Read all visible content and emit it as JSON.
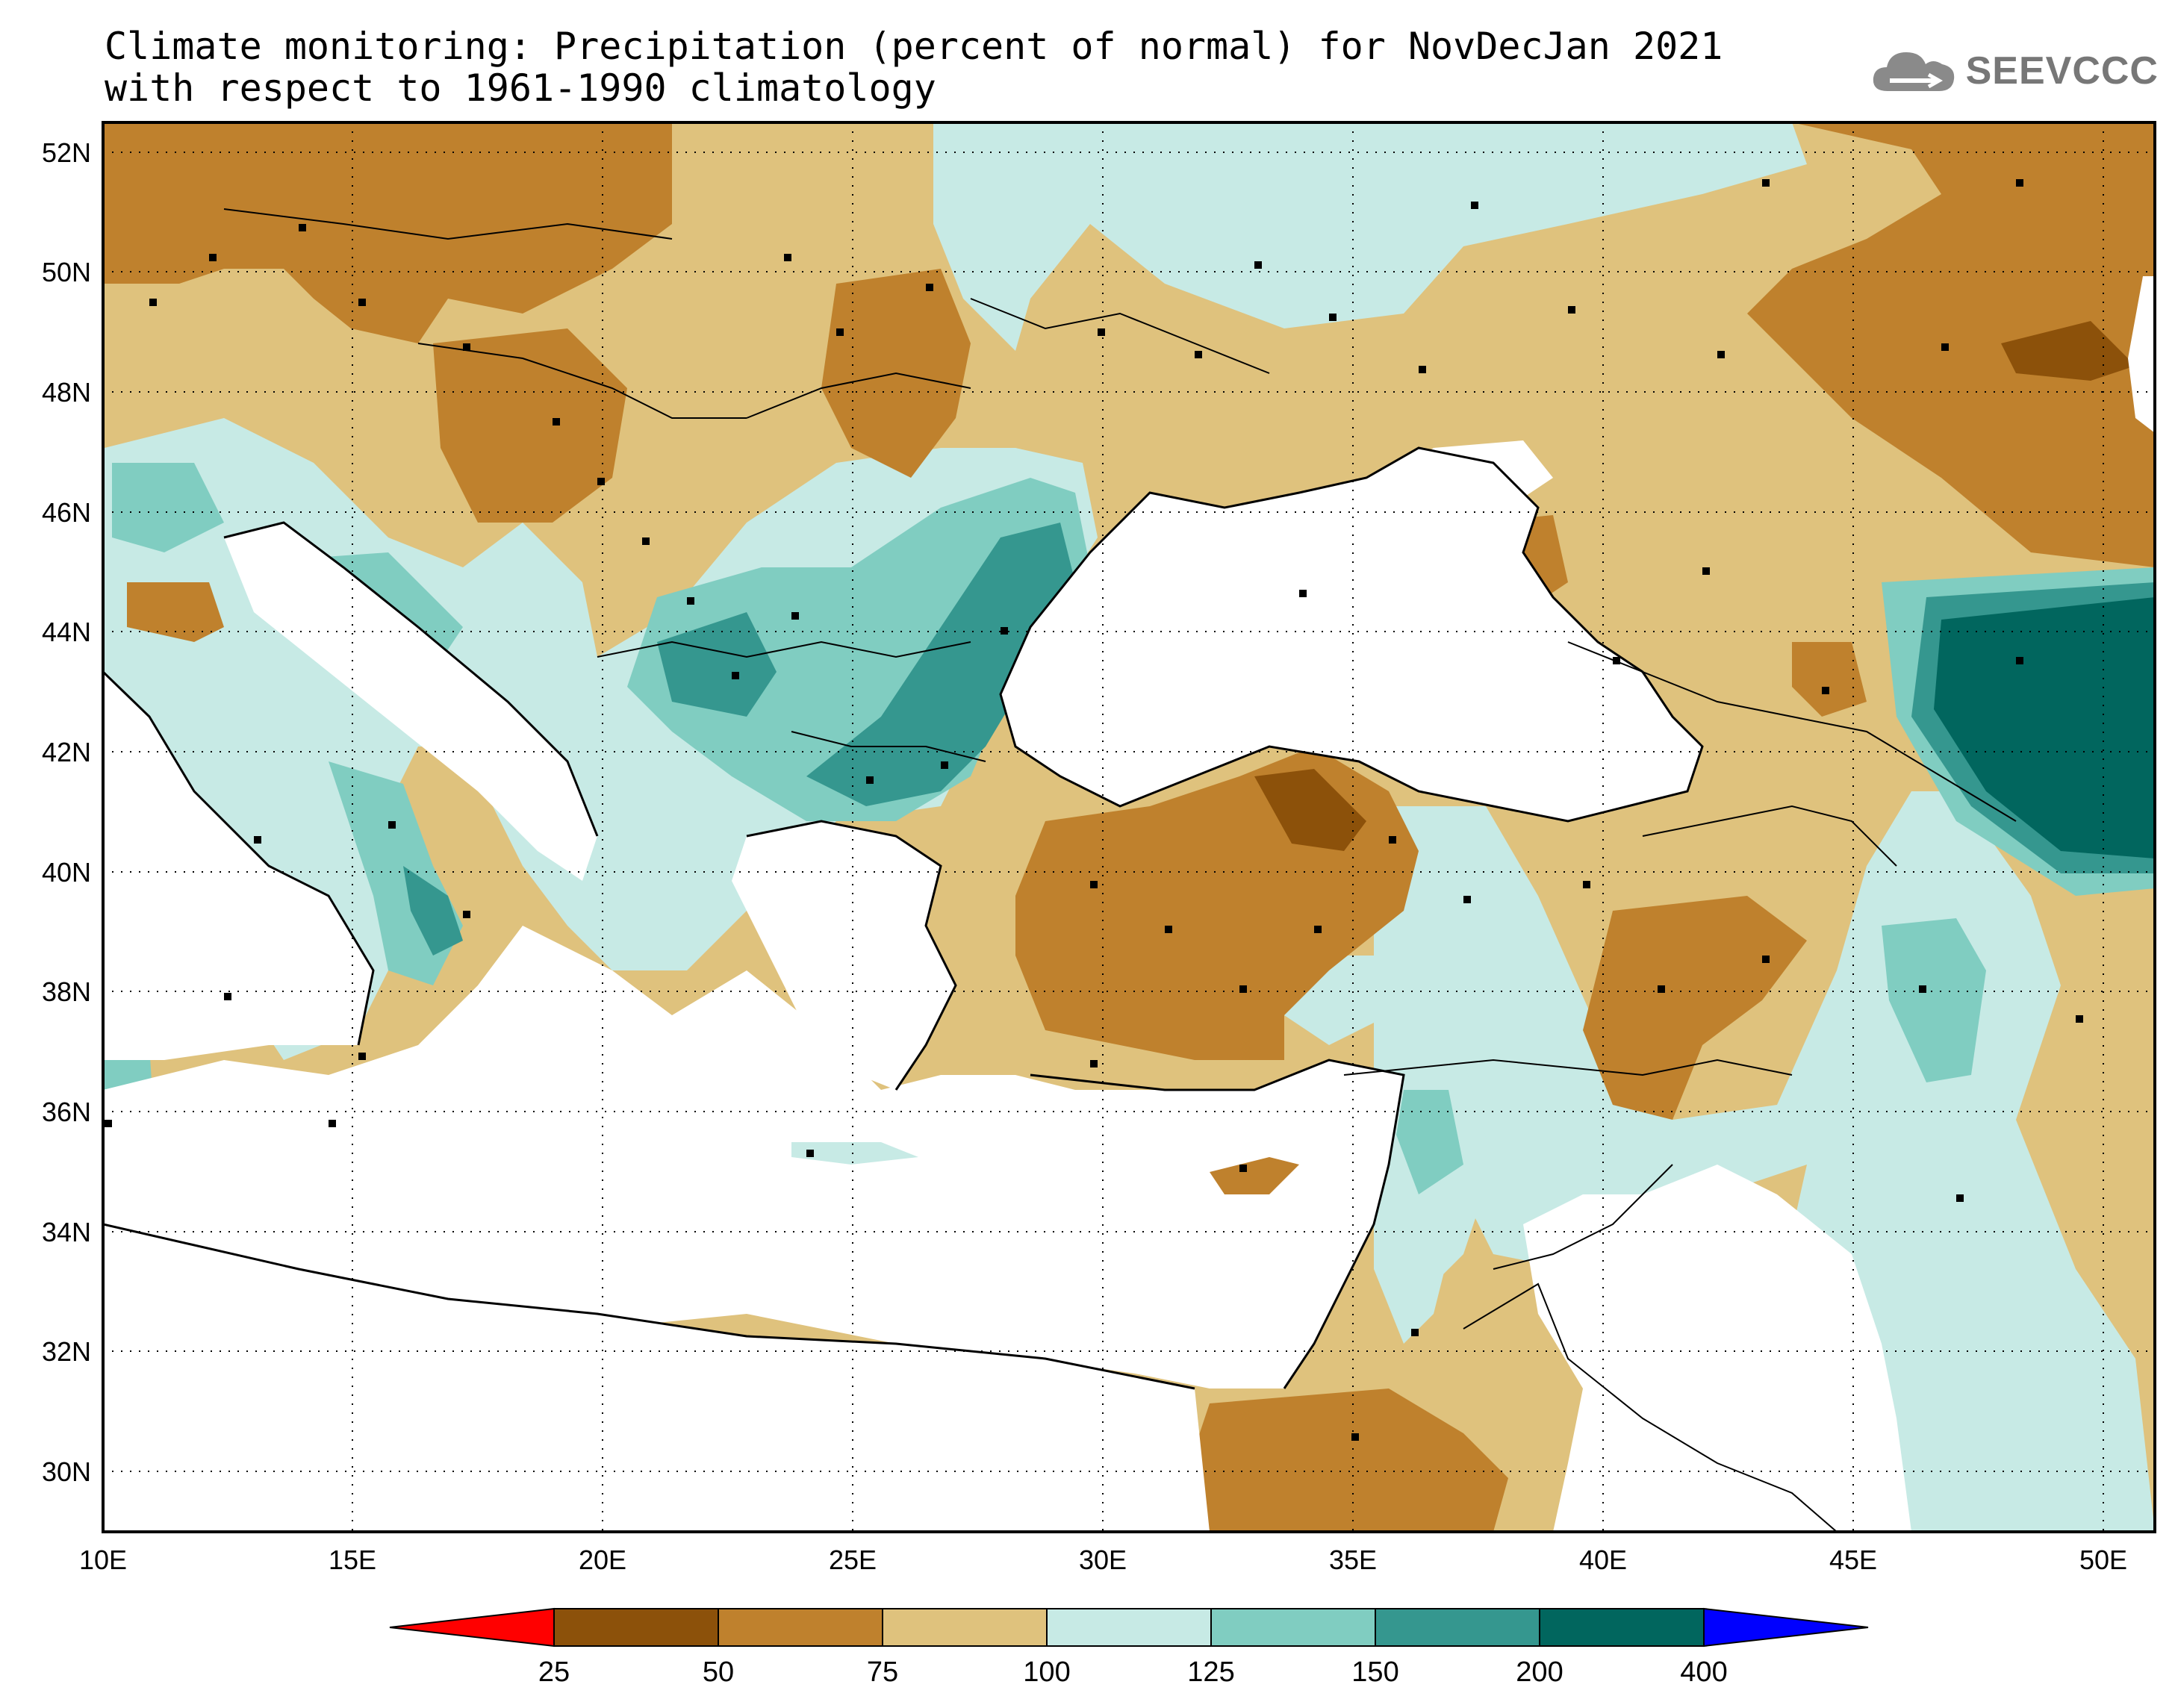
{
  "title": {
    "line1": "Climate monitoring: Precipitation (percent of normal) for NovDecJan 2021",
    "line2": "with respect to 1961-1990 climatology"
  },
  "logo": {
    "text": "SEEVCCC",
    "icon": "cloud-icon"
  },
  "map": {
    "lon_range": [
      10,
      51
    ],
    "lat_range": [
      29,
      52.5
    ],
    "lon_ticks": [
      "10E",
      "15E",
      "20E",
      "25E",
      "30E",
      "35E",
      "40E",
      "45E",
      "50E"
    ],
    "lat_ticks": [
      "30N",
      "32N",
      "34N",
      "36N",
      "38N",
      "40N",
      "42N",
      "44N",
      "46N",
      "48N",
      "50N",
      "52N"
    ],
    "grid": "dotted"
  },
  "colorbar": {
    "labels": [
      "25",
      "50",
      "75",
      "100",
      "125",
      "150",
      "200",
      "400"
    ],
    "colors": [
      "#8c510a",
      "#bf812d",
      "#dfc27d",
      "#c7eae5",
      "#80cdc1",
      "#35978f",
      "#01665e"
    ],
    "under_color": "#ff0000",
    "over_color": "#0000ff"
  },
  "palette": {
    "water": "#ffffff",
    "p25_50": "#8c510a",
    "p50_75": "#bf812d",
    "p75_100": "#dfc27d",
    "p100_125": "#c7eae5",
    "p125_150": "#80cdc1",
    "p150_200": "#35978f",
    "p200_400": "#01665e"
  }
}
